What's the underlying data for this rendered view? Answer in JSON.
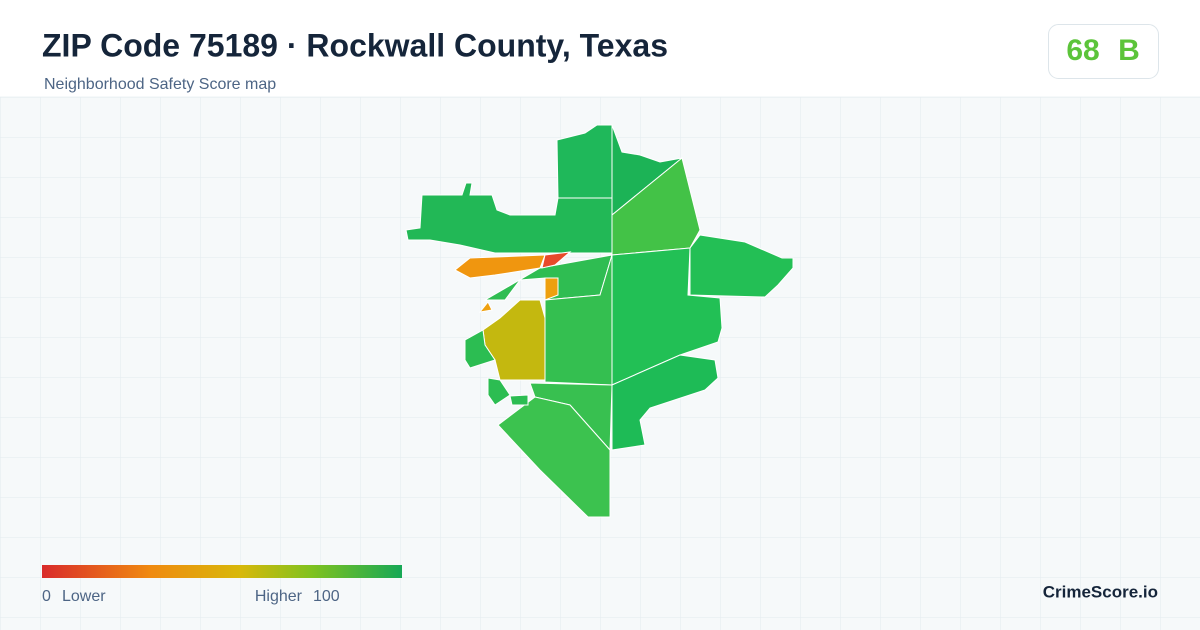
{
  "header": {
    "title": "ZIP Code 75189 · Rockwall County, Texas",
    "subtitle": "Neighborhood Safety Score map"
  },
  "score": {
    "value": 68,
    "grade": "B"
  },
  "legend": {
    "min": 0,
    "min_label": "Lower",
    "max_label": "Higher",
    "max": 100
  },
  "brand": "CrimeScore.io"
}
